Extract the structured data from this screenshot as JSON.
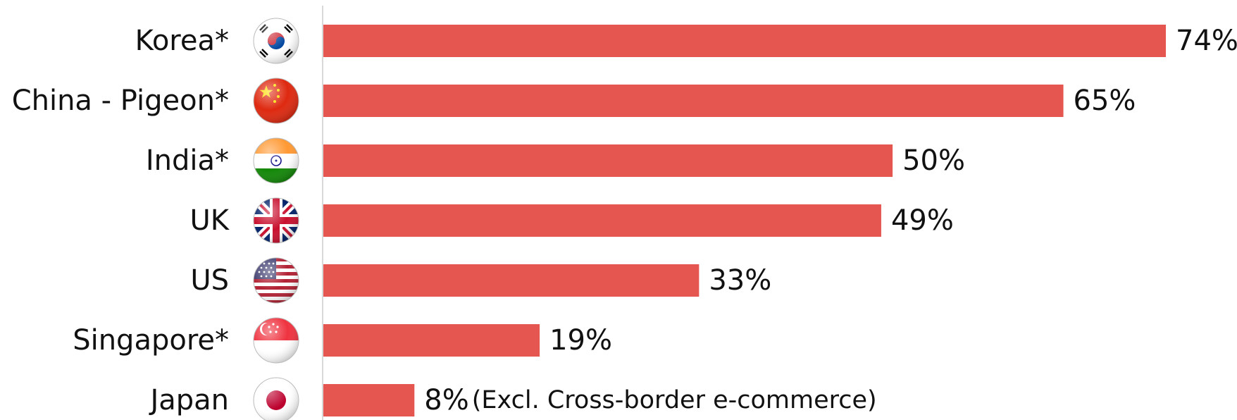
{
  "chart_data": {
    "type": "bar",
    "orientation": "horizontal",
    "categories": [
      "Korea*",
      "China - Pigeon*",
      "India*",
      "UK",
      "US",
      "Singapore*",
      "Japan"
    ],
    "values": [
      74,
      65,
      50,
      49,
      33,
      19,
      8
    ],
    "value_labels": [
      "74%",
      "65%",
      "50%",
      "49%",
      "33%",
      "19%",
      "8%"
    ],
    "flags": [
      "south-korea-flag-icon",
      "china-flag-icon",
      "india-flag-icon",
      "uk-flag-icon",
      "us-flag-icon",
      "singapore-flag-icon",
      "japan-flag-icon"
    ],
    "annotations": [
      {
        "category": "Japan",
        "text": "(Excl. Cross-border e-commerce)"
      }
    ],
    "title": "",
    "xlabel": "",
    "ylabel": "",
    "xlim": [
      0,
      74
    ],
    "grid": false,
    "legend": "none",
    "bar_color": "#E55651",
    "axis_color": "#d9d9d9"
  }
}
